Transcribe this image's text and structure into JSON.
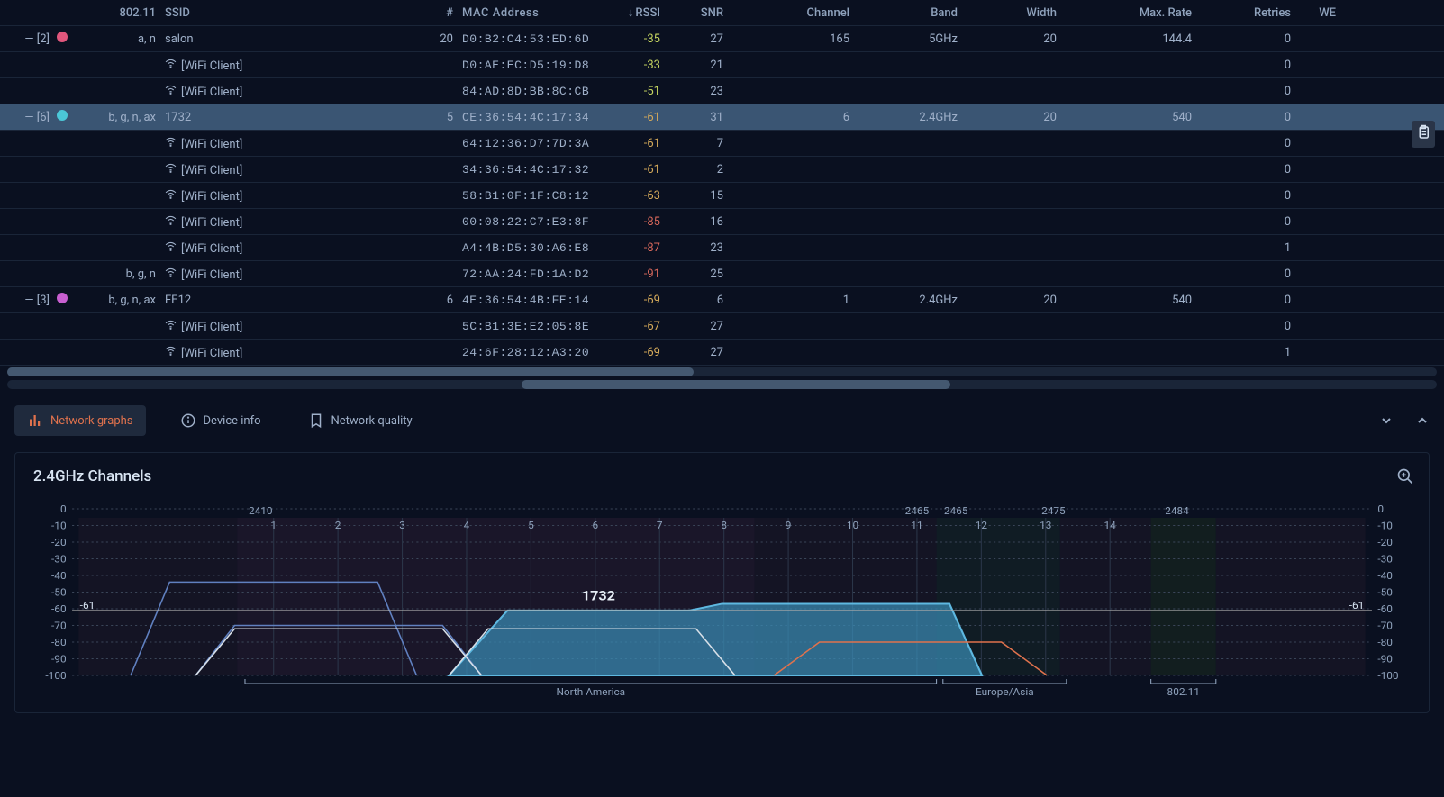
{
  "columns": {
    "c80211": "802.11",
    "ssid": "SSID",
    "count": "#",
    "mac": "MAC Address",
    "rssi": "RSSI",
    "snr": "SNR",
    "channel": "Channel",
    "band": "Band",
    "width": "Width",
    "rate": "Max. Rate",
    "retries": "Retries",
    "we": "WE"
  },
  "sort_indicator": "↓",
  "rows": [
    {
      "type": "ap",
      "toggle": "—  [2]",
      "dot": "#e0567c",
      "c80211": "a, n",
      "ssid": "salon",
      "count": "20",
      "mac": "D0:B2:C4:53:ED:6D",
      "rssi": "-35",
      "rssi_cls": "good",
      "snr": "27",
      "channel": "165",
      "band": "5GHz",
      "width": "20",
      "rate": "144.4",
      "retries": "0"
    },
    {
      "type": "client",
      "ssid": "[WiFi Client]",
      "mac": "D0:AE:EC:D5:19:D8",
      "rssi": "-33",
      "rssi_cls": "good",
      "snr": "21",
      "retries": "0"
    },
    {
      "type": "client",
      "ssid": "[WiFi Client]",
      "mac": "84:AD:8D:BB:8C:CB",
      "rssi": "-51",
      "rssi_cls": "good",
      "snr": "23",
      "retries": "0"
    },
    {
      "type": "ap",
      "selected": true,
      "toggle": "—  [6]",
      "dot": "#4bc8d8",
      "c80211": "b, g, n, ax",
      "ssid": "1732",
      "count": "5",
      "mac": "CE:36:54:4C:17:34",
      "rssi": "-61",
      "rssi_cls": "warn",
      "snr": "31",
      "channel": "6",
      "band": "2.4GHz",
      "width": "20",
      "rate": "540",
      "retries": "0"
    },
    {
      "type": "client",
      "ssid": "[WiFi Client]",
      "mac": "64:12:36:D7:7D:3A",
      "rssi": "-61",
      "rssi_cls": "warn",
      "snr": "7",
      "retries": "0"
    },
    {
      "type": "client",
      "ssid": "[WiFi Client]",
      "mac": "34:36:54:4C:17:32",
      "rssi": "-61",
      "rssi_cls": "warn",
      "snr": "2",
      "retries": "0"
    },
    {
      "type": "client",
      "ssid": "[WiFi Client]",
      "mac": "58:B1:0F:1F:C8:12",
      "rssi": "-63",
      "rssi_cls": "warn",
      "snr": "15",
      "retries": "0"
    },
    {
      "type": "client",
      "ssid": "[WiFi Client]",
      "mac": "00:08:22:C7:E3:8F",
      "rssi": "-85",
      "rssi_cls": "bad",
      "snr": "16",
      "retries": "0"
    },
    {
      "type": "client",
      "ssid": "[WiFi Client]",
      "mac": "A4:4B:D5:30:A6:E8",
      "rssi": "-87",
      "rssi_cls": "bad",
      "snr": "23",
      "retries": "1"
    },
    {
      "type": "client",
      "c80211": "b, g, n",
      "ssid": "[WiFi Client]",
      "mac": "72:AA:24:FD:1A:D2",
      "rssi": "-91",
      "rssi_cls": "bad",
      "snr": "25",
      "retries": "0"
    },
    {
      "type": "ap",
      "toggle": "—  [3]",
      "dot": "#c85fd0",
      "c80211": "b, g, n, ax",
      "ssid": "FE12",
      "count": "6",
      "mac": "4E:36:54:4B:FE:14",
      "rssi": "-69",
      "rssi_cls": "warn",
      "snr": "6",
      "channel": "1",
      "band": "2.4GHz",
      "width": "20",
      "rate": "540",
      "retries": "0"
    },
    {
      "type": "client",
      "ssid": "[WiFi Client]",
      "mac": "5C:B1:3E:E2:05:8E",
      "rssi": "-67",
      "rssi_cls": "warn",
      "snr": "27",
      "retries": "0"
    },
    {
      "type": "client",
      "ssid": "[WiFi Client]",
      "mac": "24:6F:28:12:A3:20",
      "rssi": "-69",
      "rssi_cls": "warn",
      "snr": "27",
      "retries": "1"
    }
  ],
  "tabs": {
    "graphs": "Network graphs",
    "device": "Device info",
    "quality": "Network quality"
  },
  "chart": {
    "title": "2.4GHz Channels",
    "ylim": [
      -100,
      0
    ],
    "ytick_step": 10,
    "yticks": [
      "0",
      "-10",
      "-20",
      "-30",
      "-40",
      "-50",
      "-60",
      "-70",
      "-80",
      "-90",
      "-100"
    ],
    "freq_labels": [
      {
        "x": 0.145,
        "text": "2410"
      },
      {
        "x": 0.65,
        "text": "2465"
      },
      {
        "x": 0.68,
        "text": "2465"
      },
      {
        "x": 0.755,
        "text": "2475"
      },
      {
        "x": 0.85,
        "text": "2484"
      }
    ],
    "channel_ticks": [
      "1",
      "2",
      "3",
      "4",
      "5",
      "6",
      "7",
      "8",
      "9",
      "10",
      "11",
      "12",
      "13",
      "14"
    ],
    "selected_label": "1732",
    "selected_rssi": "-61",
    "region_labels": {
      "na": "North America",
      "eu": "Europe/Asia",
      "b80211": "802.11"
    },
    "colors": {
      "grid": "#2a3548",
      "grid_dash": "#3a4558",
      "text": "#8fa2bc",
      "selected_fill": "#3a8fb8",
      "selected_stroke": "#5eb8e0",
      "blue_line": "#6080c0",
      "white_line": "#d8e0e8",
      "orange_line": "#e0724d",
      "bg_zone1": "#1a1828",
      "bg_zone2": "#241a30",
      "bg_zone3": "#142428",
      "bg_zone4": "#182820"
    },
    "curves": [
      {
        "type": "filled",
        "color_stroke": "#5eb8e0",
        "color_fill": "#3a8fb8",
        "opacity": 0.7,
        "pts": [
          [
            0.29,
            1.0
          ],
          [
            0.335,
            0.61
          ],
          [
            0.475,
            0.61
          ],
          [
            0.5,
            0.57
          ],
          [
            0.675,
            0.57
          ],
          [
            0.7,
            1.0
          ]
        ]
      },
      {
        "type": "line",
        "color_stroke": "#6080c0",
        "pts": [
          [
            0.045,
            1.0
          ],
          [
            0.075,
            0.44
          ],
          [
            0.235,
            0.44
          ],
          [
            0.265,
            1.0
          ]
        ]
      },
      {
        "type": "line",
        "color_stroke": "#6080c0",
        "pts": [
          [
            0.095,
            1.0
          ],
          [
            0.125,
            0.7
          ],
          [
            0.285,
            0.7
          ],
          [
            0.315,
            1.0
          ]
        ]
      },
      {
        "type": "line",
        "color_stroke": "#d8e0e8",
        "pts": [
          [
            0.095,
            1.0
          ],
          [
            0.125,
            0.72
          ],
          [
            0.285,
            0.72
          ],
          [
            0.315,
            1.0
          ]
        ]
      },
      {
        "type": "line",
        "color_stroke": "#d8e0e8",
        "pts": [
          [
            0.29,
            1.0
          ],
          [
            0.32,
            0.72
          ],
          [
            0.48,
            0.72
          ],
          [
            0.51,
            1.0
          ]
        ]
      },
      {
        "type": "line",
        "color_stroke": "#e0724d",
        "pts": [
          [
            0.54,
            1.0
          ],
          [
            0.575,
            0.8
          ],
          [
            0.715,
            0.8
          ],
          [
            0.75,
            1.0
          ]
        ]
      }
    ],
    "rssi_line_y": 0.61
  }
}
